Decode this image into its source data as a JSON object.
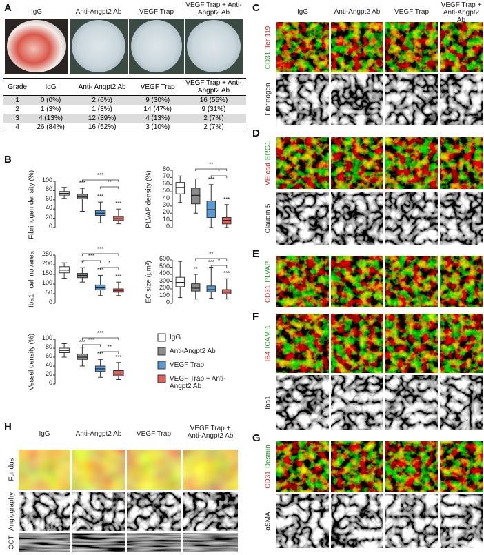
{
  "panel_labels": [
    "A",
    "B",
    "C",
    "D",
    "E",
    "F",
    "G",
    "H"
  ],
  "panel_a": {
    "columns": [
      "IgG",
      "Anti-Angpt2 Ab",
      "VEGF Trap",
      "VEGF Trap + Anti-Angpt2 Ab"
    ],
    "table": {
      "header": [
        "Grade",
        "IgG",
        "Anti- Angpt2 Ab",
        "VEGF Trap",
        "VEGF Trap + Anti-Angpt2 Ab"
      ],
      "rows": [
        [
          "1",
          "0 (0%)",
          "2 (6%)",
          "9 (30%)",
          "16 (55%)"
        ],
        [
          "2",
          "1 (3%)",
          "1 (3%)",
          "14 (47%)",
          "9 (31%)"
        ],
        [
          "3",
          "4 (13%)",
          "12 (39%)",
          "4 (13%)",
          "2 (7%)"
        ],
        [
          "4",
          "26 (84%)",
          "16 (52%)",
          "3 (10%)",
          "2 (7%)"
        ]
      ]
    }
  },
  "chart_data": [
    {
      "type": "box",
      "ylabel": "Fibrinogen density (%)",
      "ylim": [
        0,
        100
      ],
      "yticks": [
        0,
        20,
        40,
        60,
        80,
        100
      ],
      "boxes": [
        {
          "min": 63,
          "q1": 70,
          "median": 74,
          "q3": 78,
          "max": 87
        },
        {
          "min": 35,
          "q1": 62,
          "median": 66,
          "q3": 72,
          "max": 85
        },
        {
          "min": 10,
          "q1": 26,
          "median": 31,
          "q3": 37,
          "max": 55
        },
        {
          "min": 8,
          "q1": 15,
          "median": 19,
          "q3": 24,
          "max": 40
        }
      ],
      "box_labels": [
        null,
        "***",
        "***",
        "***"
      ],
      "brackets": [
        {
          "from": 1,
          "to": 3,
          "label": "***"
        },
        {
          "from": 2,
          "to": 3,
          "label": "**"
        }
      ]
    },
    {
      "type": "box",
      "ylabel": "PLVAP density (%)",
      "ylim": [
        0,
        80
      ],
      "yticks": [
        0,
        10,
        20,
        30,
        40,
        50,
        60,
        70,
        80
      ],
      "boxes": [
        {
          "min": 35,
          "q1": 47,
          "median": 56,
          "q3": 63,
          "max": 72
        },
        {
          "min": 20,
          "q1": 33,
          "median": 45,
          "q3": 55,
          "max": 68
        },
        {
          "min": 0,
          "q1": 14,
          "median": 25,
          "q3": 37,
          "max": 60
        },
        {
          "min": 0,
          "q1": 5,
          "median": 10,
          "q3": 14,
          "max": 32
        }
      ],
      "box_labels": [
        null,
        null,
        "***",
        "***"
      ],
      "brackets": [
        {
          "from": 1,
          "to": 3,
          "label": "**"
        },
        {
          "from": 2,
          "to": 3,
          "label": "*"
        }
      ]
    },
    {
      "type": "box",
      "ylabel": "Iba1⁺ cell no./area",
      "ylim": [
        0,
        250
      ],
      "yticks": [
        0,
        50,
        100,
        150,
        200,
        250
      ],
      "boxes": [
        {
          "min": 130,
          "q1": 158,
          "median": 172,
          "q3": 190,
          "max": 210
        },
        {
          "min": 110,
          "q1": 133,
          "median": 145,
          "q3": 155,
          "max": 185
        },
        {
          "min": 40,
          "q1": 70,
          "median": 80,
          "q3": 95,
          "max": 145
        },
        {
          "min": 40,
          "q1": 58,
          "median": 65,
          "q3": 75,
          "max": 110
        }
      ],
      "box_labels": [
        null,
        "**",
        "***",
        "***"
      ],
      "brackets": [
        {
          "from": 1,
          "to": 3,
          "label": "***"
        },
        {
          "from": 1,
          "to": 2,
          "label": "***"
        },
        {
          "from": 2,
          "to": 3,
          "label": "*"
        }
      ]
    },
    {
      "type": "box",
      "ylabel": "EC size (μm²)",
      "ylim": [
        0,
        600
      ],
      "yticks": [
        0,
        100,
        200,
        300,
        400,
        500,
        600
      ],
      "boxes": [
        {
          "min": 80,
          "q1": 230,
          "median": 290,
          "q3": 360,
          "max": 580
        },
        {
          "min": 60,
          "q1": 170,
          "median": 210,
          "q3": 270,
          "max": 400
        },
        {
          "min": 70,
          "q1": 160,
          "median": 190,
          "q3": 240,
          "max": 500
        },
        {
          "min": 60,
          "q1": 130,
          "median": 155,
          "q3": 190,
          "max": 340
        }
      ],
      "box_labels": [
        null,
        "**",
        "***",
        "***"
      ],
      "brackets": [
        {
          "from": 1,
          "to": 3,
          "label": "**"
        },
        {
          "from": 2,
          "to": 3,
          "label": "*"
        }
      ]
    },
    {
      "type": "box",
      "ylabel": "Vessel density (%)",
      "ylim": [
        0,
        100
      ],
      "yticks": [
        0,
        20,
        40,
        60,
        80,
        100
      ],
      "boxes": [
        {
          "min": 60,
          "q1": 70,
          "median": 75,
          "q3": 80,
          "max": 90
        },
        {
          "min": 40,
          "q1": 55,
          "median": 60,
          "q3": 67,
          "max": 82
        },
        {
          "min": 15,
          "q1": 28,
          "median": 34,
          "q3": 40,
          "max": 55
        },
        {
          "min": 10,
          "q1": 18,
          "median": 22,
          "q3": 30,
          "max": 48
        }
      ],
      "box_labels": [
        null,
        "***",
        "***",
        "***"
      ],
      "brackets": [
        {
          "from": 1,
          "to": 3,
          "label": "***"
        },
        {
          "from": 1,
          "to": 2,
          "label": "***"
        },
        {
          "from": 2,
          "to": 3,
          "label": "**"
        }
      ]
    }
  ],
  "legend": [
    {
      "name": "IgG",
      "color": "#ffffff"
    },
    {
      "name": "Anti-Angpt2 Ab",
      "color": "#8c8c8c"
    },
    {
      "name": "VEGF Trap",
      "color": "#5b9bd5"
    },
    {
      "name": "VEGF Trap + Anti-Angpt2 Ab",
      "color": "#e0605a"
    }
  ],
  "panel_c": {
    "columns": [
      "IgG",
      "Anti-Angpt2 Ab",
      "VEGF Trap",
      "VEGF Trap + Anti-Angpt2 Ab"
    ],
    "rows": [
      [
        {
          "text": "CD31",
          "color": "#1a9a1a"
        },
        {
          "text": "Ter-119",
          "color": "#d42020"
        }
      ],
      [
        {
          "text": "Fibrinogen",
          "color": "#222222"
        }
      ]
    ]
  },
  "panel_d": {
    "rows": [
      [
        {
          "text": "VE-cad",
          "color": "#d42020"
        },
        {
          "text": "ERG1",
          "color": "#1a9a1a"
        }
      ],
      [
        {
          "text": "Claudin-5",
          "color": "#222222"
        }
      ]
    ]
  },
  "panel_e": {
    "rows": [
      [
        {
          "text": "CD31",
          "color": "#d42020"
        },
        {
          "text": "PLVAP",
          "color": "#1a9a1a"
        }
      ]
    ]
  },
  "panel_f": {
    "rows": [
      [
        {
          "text": "IB4",
          "color": "#d42020"
        },
        {
          "text": "ICAM-1",
          "color": "#1a9a1a"
        }
      ],
      [
        {
          "text": "Iba1",
          "color": "#222222"
        }
      ]
    ]
  },
  "panel_g": {
    "rows": [
      [
        {
          "text": "CD31",
          "color": "#d42020"
        },
        {
          "text": "Desmin",
          "color": "#1a9a1a"
        }
      ],
      [
        {
          "text": "αSMA",
          "color": "#222222"
        }
      ]
    ]
  },
  "panel_h": {
    "columns": [
      "IgG",
      "Anti-Angpt2 Ab",
      "VEGF Trap",
      "VEGF Trap + Anti-Angpt2 Ab"
    ],
    "rows": [
      "Fundus",
      "Angiography",
      "OCT"
    ]
  }
}
